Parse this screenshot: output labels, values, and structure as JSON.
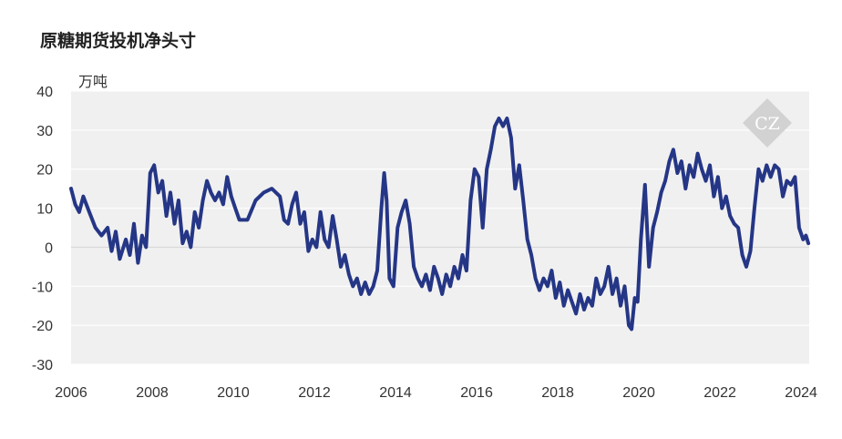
{
  "title": "原糖期货投机净头寸",
  "unit_label": "万吨",
  "chart_data": {
    "type": "line",
    "title": "原糖期货投机净头寸",
    "ylabel": "万吨",
    "xlabel": "",
    "xlim": [
      2006,
      2024.2
    ],
    "ylim": [
      -30,
      40
    ],
    "grid": true,
    "x_ticks": [
      "2006",
      "2008",
      "2010",
      "2012",
      "2014",
      "2016",
      "2018",
      "2020",
      "2022",
      "2024"
    ],
    "y_ticks": [
      "40",
      "30",
      "20",
      "10",
      "0",
      "-10",
      "-20",
      "-30"
    ],
    "series": [
      {
        "color": "#253686",
        "points": [
          [
            2006.0,
            15
          ],
          [
            2006.1,
            11
          ],
          [
            2006.2,
            9
          ],
          [
            2006.3,
            13
          ],
          [
            2006.45,
            9
          ],
          [
            2006.6,
            5
          ],
          [
            2006.75,
            3
          ],
          [
            2006.9,
            5
          ],
          [
            2007.0,
            -1
          ],
          [
            2007.1,
            4
          ],
          [
            2007.2,
            -3
          ],
          [
            2007.35,
            2
          ],
          [
            2007.45,
            -2
          ],
          [
            2007.55,
            6
          ],
          [
            2007.65,
            -4
          ],
          [
            2007.75,
            3
          ],
          [
            2007.85,
            0
          ],
          [
            2007.95,
            19
          ],
          [
            2008.05,
            21
          ],
          [
            2008.15,
            14
          ],
          [
            2008.25,
            17
          ],
          [
            2008.35,
            8
          ],
          [
            2008.45,
            14
          ],
          [
            2008.55,
            6
          ],
          [
            2008.65,
            12
          ],
          [
            2008.75,
            1
          ],
          [
            2008.85,
            4
          ],
          [
            2008.95,
            0
          ],
          [
            2009.05,
            9
          ],
          [
            2009.15,
            5
          ],
          [
            2009.25,
            12
          ],
          [
            2009.35,
            17
          ],
          [
            2009.45,
            14
          ],
          [
            2009.55,
            12
          ],
          [
            2009.65,
            14
          ],
          [
            2009.75,
            11
          ],
          [
            2009.85,
            18
          ],
          [
            2009.95,
            13
          ],
          [
            2010.05,
            10
          ],
          [
            2010.15,
            7
          ],
          [
            2010.35,
            7
          ],
          [
            2010.55,
            12
          ],
          [
            2010.75,
            14
          ],
          [
            2010.95,
            15
          ],
          [
            2011.15,
            13
          ],
          [
            2011.25,
            7
          ],
          [
            2011.35,
            6
          ],
          [
            2011.45,
            11
          ],
          [
            2011.55,
            14
          ],
          [
            2011.65,
            6
          ],
          [
            2011.75,
            9
          ],
          [
            2011.85,
            -1
          ],
          [
            2011.95,
            2
          ],
          [
            2012.05,
            0
          ],
          [
            2012.15,
            9
          ],
          [
            2012.25,
            2
          ],
          [
            2012.35,
            0
          ],
          [
            2012.45,
            8
          ],
          [
            2012.55,
            2
          ],
          [
            2012.65,
            -5
          ],
          [
            2012.75,
            -2
          ],
          [
            2012.85,
            -7
          ],
          [
            2012.95,
            -10
          ],
          [
            2013.05,
            -8
          ],
          [
            2013.15,
            -12
          ],
          [
            2013.25,
            -9
          ],
          [
            2013.35,
            -12
          ],
          [
            2013.45,
            -10
          ],
          [
            2013.55,
            -6
          ],
          [
            2013.65,
            10
          ],
          [
            2013.72,
            19
          ],
          [
            2013.78,
            12
          ],
          [
            2013.85,
            -8
          ],
          [
            2013.95,
            -10
          ],
          [
            2014.05,
            5
          ],
          [
            2014.15,
            9
          ],
          [
            2014.25,
            12
          ],
          [
            2014.35,
            6
          ],
          [
            2014.45,
            -5
          ],
          [
            2014.55,
            -8
          ],
          [
            2014.65,
            -10
          ],
          [
            2014.75,
            -7
          ],
          [
            2014.85,
            -11
          ],
          [
            2014.95,
            -5
          ],
          [
            2015.05,
            -8
          ],
          [
            2015.15,
            -12
          ],
          [
            2015.25,
            -7
          ],
          [
            2015.35,
            -10
          ],
          [
            2015.45,
            -5
          ],
          [
            2015.55,
            -8
          ],
          [
            2015.65,
            -2
          ],
          [
            2015.75,
            -6
          ],
          [
            2015.85,
            12
          ],
          [
            2015.95,
            20
          ],
          [
            2016.05,
            18
          ],
          [
            2016.15,
            5
          ],
          [
            2016.25,
            20
          ],
          [
            2016.35,
            25
          ],
          [
            2016.45,
            31
          ],
          [
            2016.55,
            33
          ],
          [
            2016.65,
            31
          ],
          [
            2016.75,
            33
          ],
          [
            2016.85,
            28
          ],
          [
            2016.95,
            15
          ],
          [
            2017.05,
            21
          ],
          [
            2017.15,
            12
          ],
          [
            2017.25,
            2
          ],
          [
            2017.35,
            -2
          ],
          [
            2017.45,
            -8
          ],
          [
            2017.55,
            -11
          ],
          [
            2017.65,
            -8
          ],
          [
            2017.75,
            -10
          ],
          [
            2017.85,
            -6
          ],
          [
            2017.95,
            -13
          ],
          [
            2018.05,
            -9
          ],
          [
            2018.15,
            -15
          ],
          [
            2018.25,
            -11
          ],
          [
            2018.35,
            -14
          ],
          [
            2018.45,
            -17
          ],
          [
            2018.55,
            -12
          ],
          [
            2018.65,
            -16
          ],
          [
            2018.75,
            -13
          ],
          [
            2018.85,
            -15
          ],
          [
            2018.95,
            -8
          ],
          [
            2019.05,
            -12
          ],
          [
            2019.15,
            -10
          ],
          [
            2019.25,
            -5
          ],
          [
            2019.35,
            -12
          ],
          [
            2019.45,
            -8
          ],
          [
            2019.55,
            -15
          ],
          [
            2019.65,
            -10
          ],
          [
            2019.75,
            -20
          ],
          [
            2019.82,
            -21
          ],
          [
            2019.9,
            -13
          ],
          [
            2019.97,
            -14
          ],
          [
            2020.05,
            2
          ],
          [
            2020.15,
            16
          ],
          [
            2020.25,
            -5
          ],
          [
            2020.35,
            5
          ],
          [
            2020.45,
            9
          ],
          [
            2020.55,
            14
          ],
          [
            2020.65,
            17
          ],
          [
            2020.75,
            22
          ],
          [
            2020.85,
            25
          ],
          [
            2020.95,
            19
          ],
          [
            2021.05,
            22
          ],
          [
            2021.15,
            15
          ],
          [
            2021.25,
            21
          ],
          [
            2021.35,
            18
          ],
          [
            2021.45,
            24
          ],
          [
            2021.55,
            20
          ],
          [
            2021.65,
            17
          ],
          [
            2021.75,
            21
          ],
          [
            2021.85,
            13
          ],
          [
            2021.95,
            18
          ],
          [
            2022.05,
            10
          ],
          [
            2022.15,
            13
          ],
          [
            2022.25,
            8
          ],
          [
            2022.35,
            6
          ],
          [
            2022.45,
            5
          ],
          [
            2022.55,
            -2
          ],
          [
            2022.65,
            -5
          ],
          [
            2022.75,
            -1
          ],
          [
            2022.85,
            10
          ],
          [
            2022.95,
            20
          ],
          [
            2023.05,
            17
          ],
          [
            2023.15,
            21
          ],
          [
            2023.25,
            18
          ],
          [
            2023.35,
            21
          ],
          [
            2023.45,
            20
          ],
          [
            2023.55,
            13
          ],
          [
            2023.65,
            17
          ],
          [
            2023.75,
            16
          ],
          [
            2023.85,
            18
          ],
          [
            2023.95,
            5
          ],
          [
            2024.05,
            2
          ],
          [
            2024.12,
            3
          ],
          [
            2024.18,
            1
          ]
        ]
      }
    ]
  }
}
